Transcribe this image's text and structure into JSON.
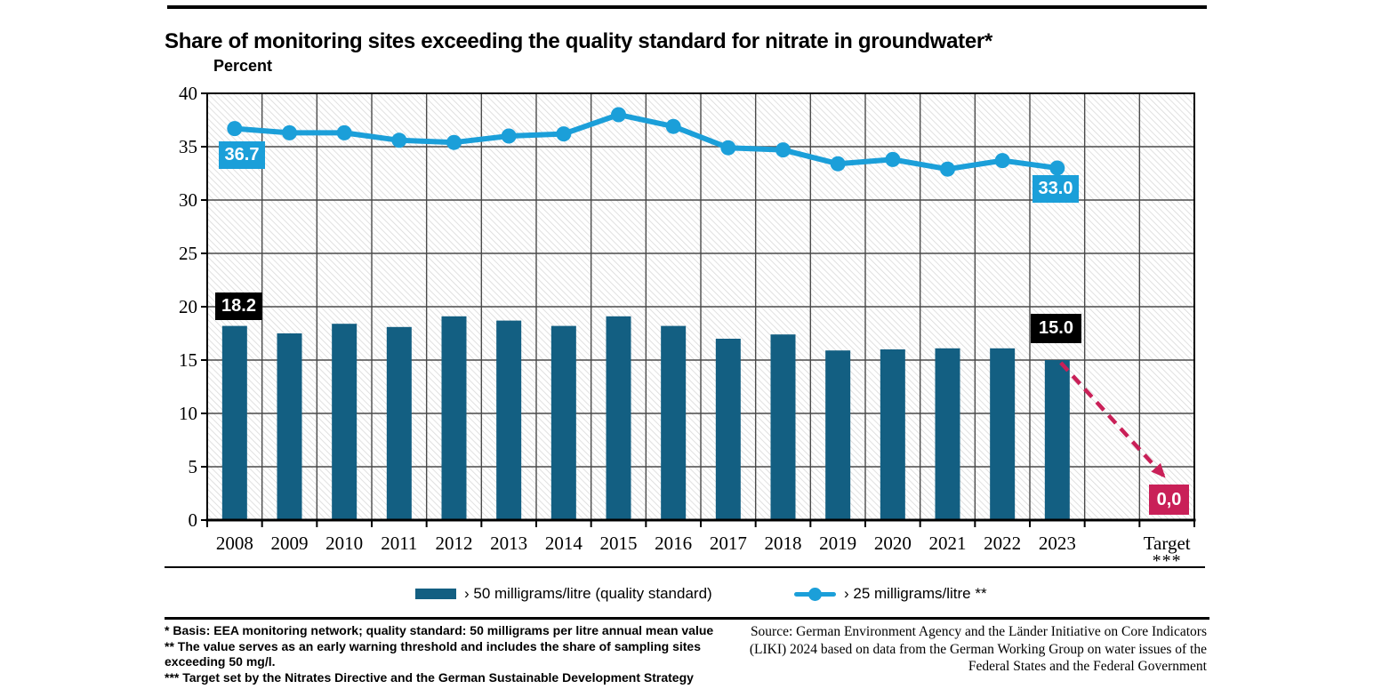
{
  "title": "Share of monitoring sites exceeding the quality standard for nitrate in groundwater*",
  "y_axis_title": "Percent",
  "chart_data": {
    "type": "bar+line",
    "categories": [
      "2008",
      "2009",
      "2010",
      "2011",
      "2012",
      "2013",
      "2014",
      "2015",
      "2016",
      "2017",
      "2018",
      "2019",
      "2020",
      "2021",
      "2022",
      "2023"
    ],
    "series": [
      {
        "name": "› 50 milligrams/litre (quality standard)",
        "type": "bar",
        "color": "#135F82",
        "values": [
          18.2,
          17.5,
          18.4,
          18.1,
          19.1,
          18.7,
          18.2,
          19.1,
          18.2,
          17.0,
          17.4,
          15.9,
          16.0,
          16.1,
          16.1,
          15.0
        ]
      },
      {
        "name": "› 25 milligrams/litre **",
        "type": "line",
        "color": "#1B9FD9",
        "values": [
          36.7,
          36.3,
          36.3,
          35.6,
          35.4,
          36.0,
          36.2,
          38.0,
          36.9,
          34.9,
          34.7,
          33.4,
          33.8,
          32.9,
          33.7,
          33.0
        ]
      }
    ],
    "annotations": {
      "line_first": "36.7",
      "line_last": "33.0",
      "bar_first": "18.2",
      "bar_last": "15.0"
    },
    "target": {
      "label": "Target",
      "footnote_marker": "***",
      "value_label": "0,0",
      "value": 0.0,
      "color": "#C92058"
    },
    "ylim": [
      0,
      40
    ],
    "yticks": [
      40,
      35,
      30,
      25,
      20,
      15,
      10,
      5,
      0
    ],
    "grid": true,
    "legend_position": "bottom"
  },
  "legend": {
    "items": [
      {
        "label": "› 50 milligrams/litre (quality standard)"
      },
      {
        "label": "› 25 milligrams/litre **"
      }
    ]
  },
  "footnotes": {
    "lines": [
      "* Basis: EEA monitoring network; quality standard: 50 milligrams per litre annual mean value",
      "** The value serves as an early warning threshold and includes the share of sampling sites",
      "exceeding 50 mg/l.",
      "*** Target set by the Nitrates Directive and the German Sustainable Development Strategy"
    ]
  },
  "source": {
    "lines": [
      "Source: German Environment Agency and the Länder Initiative on Core Indicators",
      "(LIKI) 2024 based on data from the German Working Group on water issues of the",
      "Federal States and the Federal Government"
    ]
  },
  "colors": {
    "bar": "#135F82",
    "line": "#1B9FD9",
    "target": "#C92058",
    "grid": "#4A4A4A",
    "hatch": "#D9D9D9"
  }
}
